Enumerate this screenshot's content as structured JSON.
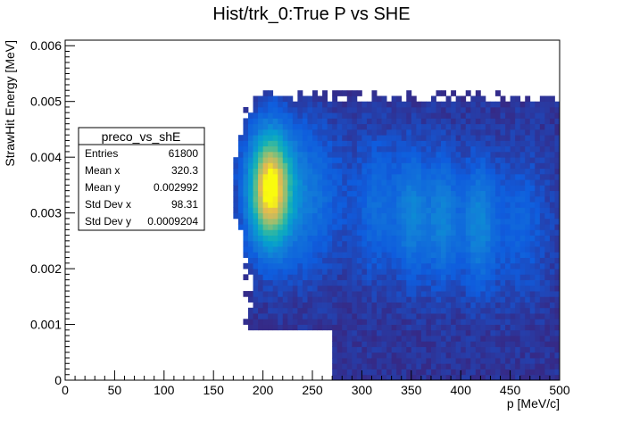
{
  "chart_data": {
    "type": "heatmap",
    "title": "Hist/trk_0:True P vs SHE",
    "xlabel": "p [MeV/c]",
    "ylabel": "StrawHit Energy [MeV]",
    "xlim": [
      0,
      500
    ],
    "ylim": [
      0,
      0.0061
    ],
    "x_ticks": [
      "0",
      "50",
      "100",
      "150",
      "200",
      "250",
      "300",
      "350",
      "400",
      "450",
      "500"
    ],
    "y_ticks": [
      "0",
      "0.001",
      "0.002",
      "0.003",
      "0.004",
      "0.005",
      "0.006"
    ],
    "x_tick_values": [
      0,
      50,
      100,
      150,
      200,
      250,
      300,
      350,
      400,
      450,
      500
    ],
    "y_tick_values": [
      0,
      0.001,
      0.002,
      0.003,
      0.004,
      0.005,
      0.006
    ],
    "palette": "kBird",
    "grid": false,
    "legend_position": "top-left",
    "stats": {
      "name": "preco_vs_shE",
      "rows": [
        {
          "label": "Entries",
          "value": "61800"
        },
        {
          "label": "Mean x",
          "value": "320.3"
        },
        {
          "label": "Mean y",
          "value": "0.002992"
        },
        {
          "label": "Std Dev x",
          "value": "98.31"
        },
        {
          "label": "Std Dev y",
          "value": "0.0009204"
        }
      ]
    }
  }
}
